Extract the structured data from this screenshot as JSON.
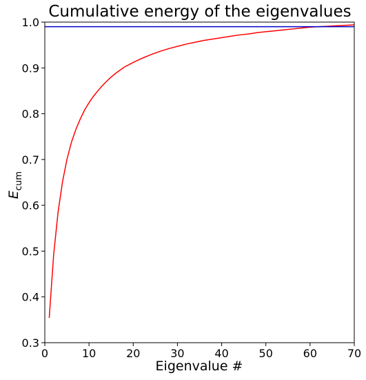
{
  "chart_data": {
    "type": "line",
    "title": "Cumulative energy of the eigenvalues",
    "xlabel": "Eigenvalue #",
    "ylabel_main": "E",
    "ylabel_sub": "cum",
    "xlim": [
      0,
      70
    ],
    "ylim": [
      0.3,
      1.0
    ],
    "xticks": [
      "0",
      "10",
      "20",
      "30",
      "40",
      "50",
      "60",
      "70"
    ],
    "yticks": [
      "0.3",
      "0.4",
      "0.5",
      "0.6",
      "0.7",
      "0.8",
      "0.9",
      "1.0"
    ],
    "grid": false,
    "series": [
      {
        "color": "#ff0000",
        "x": [
          1,
          2,
          3,
          4,
          5,
          6,
          7,
          8,
          9,
          10,
          11,
          12,
          13,
          14,
          15,
          16,
          17,
          18,
          19,
          20,
          22,
          24,
          26,
          28,
          30,
          32,
          34,
          36,
          38,
          40,
          42,
          44,
          46,
          48,
          50,
          52,
          54,
          56,
          58,
          60,
          62,
          64,
          66,
          68,
          70
        ],
        "y": [
          0.354,
          0.492,
          0.585,
          0.651,
          0.7,
          0.737,
          0.765,
          0.788,
          0.808,
          0.824,
          0.838,
          0.85,
          0.861,
          0.871,
          0.88,
          0.888,
          0.895,
          0.902,
          0.907,
          0.912,
          0.921,
          0.929,
          0.936,
          0.942,
          0.947,
          0.952,
          0.956,
          0.96,
          0.963,
          0.966,
          0.969,
          0.972,
          0.974,
          0.977,
          0.979,
          0.981,
          0.983,
          0.985,
          0.987,
          0.989,
          0.99,
          0.991,
          0.992,
          0.993,
          0.994
        ]
      },
      {
        "color": "#0000cc",
        "x": [
          0,
          70
        ],
        "y": [
          0.99,
          0.99
        ]
      }
    ]
  }
}
